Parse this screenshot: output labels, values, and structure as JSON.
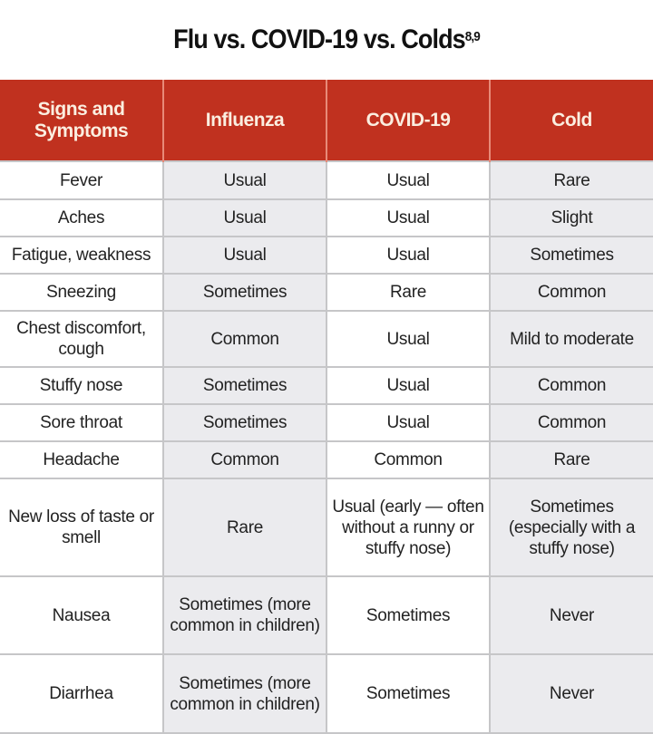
{
  "title": "Flu vs. COVID-19 vs. Colds",
  "title_superscript": "8,9",
  "colors": {
    "header_bg": "#c0311f",
    "header_text": "#fbeee0",
    "shaded_column": "#ebebee"
  },
  "headers": [
    "Signs and Symptoms",
    "Influenza",
    "COVID-19",
    "Cold"
  ],
  "rows": [
    [
      "Fever",
      "Usual",
      "Usual",
      "Rare"
    ],
    [
      "Aches",
      "Usual",
      "Usual",
      "Slight"
    ],
    [
      "Fatigue, weakness",
      "Usual",
      "Usual",
      "Sometimes"
    ],
    [
      "Sneezing",
      "Sometimes",
      "Rare",
      "Common"
    ],
    [
      "Chest discomfort, cough",
      "Common",
      "Usual",
      "Mild to moderate"
    ],
    [
      "Stuffy nose",
      "Sometimes",
      "Usual",
      "Common"
    ],
    [
      "Sore throat",
      "Sometimes",
      "Usual",
      "Common"
    ],
    [
      "Headache",
      "Common",
      "Common",
      "Rare"
    ],
    [
      "New loss of taste or smell",
      "Rare",
      "Usual (early — often without a runny or stuffy nose)",
      "Sometimes (especially with a stuffy nose)"
    ],
    [
      "Nausea",
      "Sometimes (more common in children)",
      "Sometimes",
      "Never"
    ],
    [
      "Diarrhea",
      "Sometimes (more common in children)",
      "Sometimes",
      "Never"
    ]
  ]
}
